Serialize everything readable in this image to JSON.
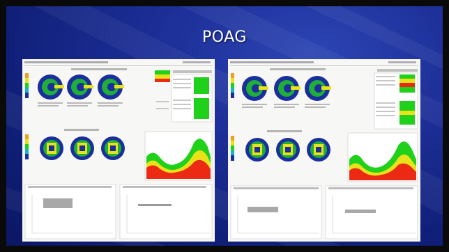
{
  "slide": {
    "title": "POAG",
    "background_color": "#1d2f98"
  },
  "panels": [
    {
      "id": "left",
      "content": "blurred-glaucoma-change-analysis-printout",
      "fill_levels": {
        "upper_green": 0.85,
        "middle_yellow": 0.6,
        "lower_red": 0.35
      }
    },
    {
      "id": "right",
      "content": "blurred-glaucoma-change-analysis-printout",
      "fill_levels": {
        "upper_green": 0.8,
        "middle_yellow": 0.55,
        "lower_red": 0.3
      }
    }
  ],
  "colors": {
    "green": "#1fd11a",
    "yellow": "#e9e21b",
    "red": "#ec2a14",
    "map_blue": "#1a2e9c"
  }
}
